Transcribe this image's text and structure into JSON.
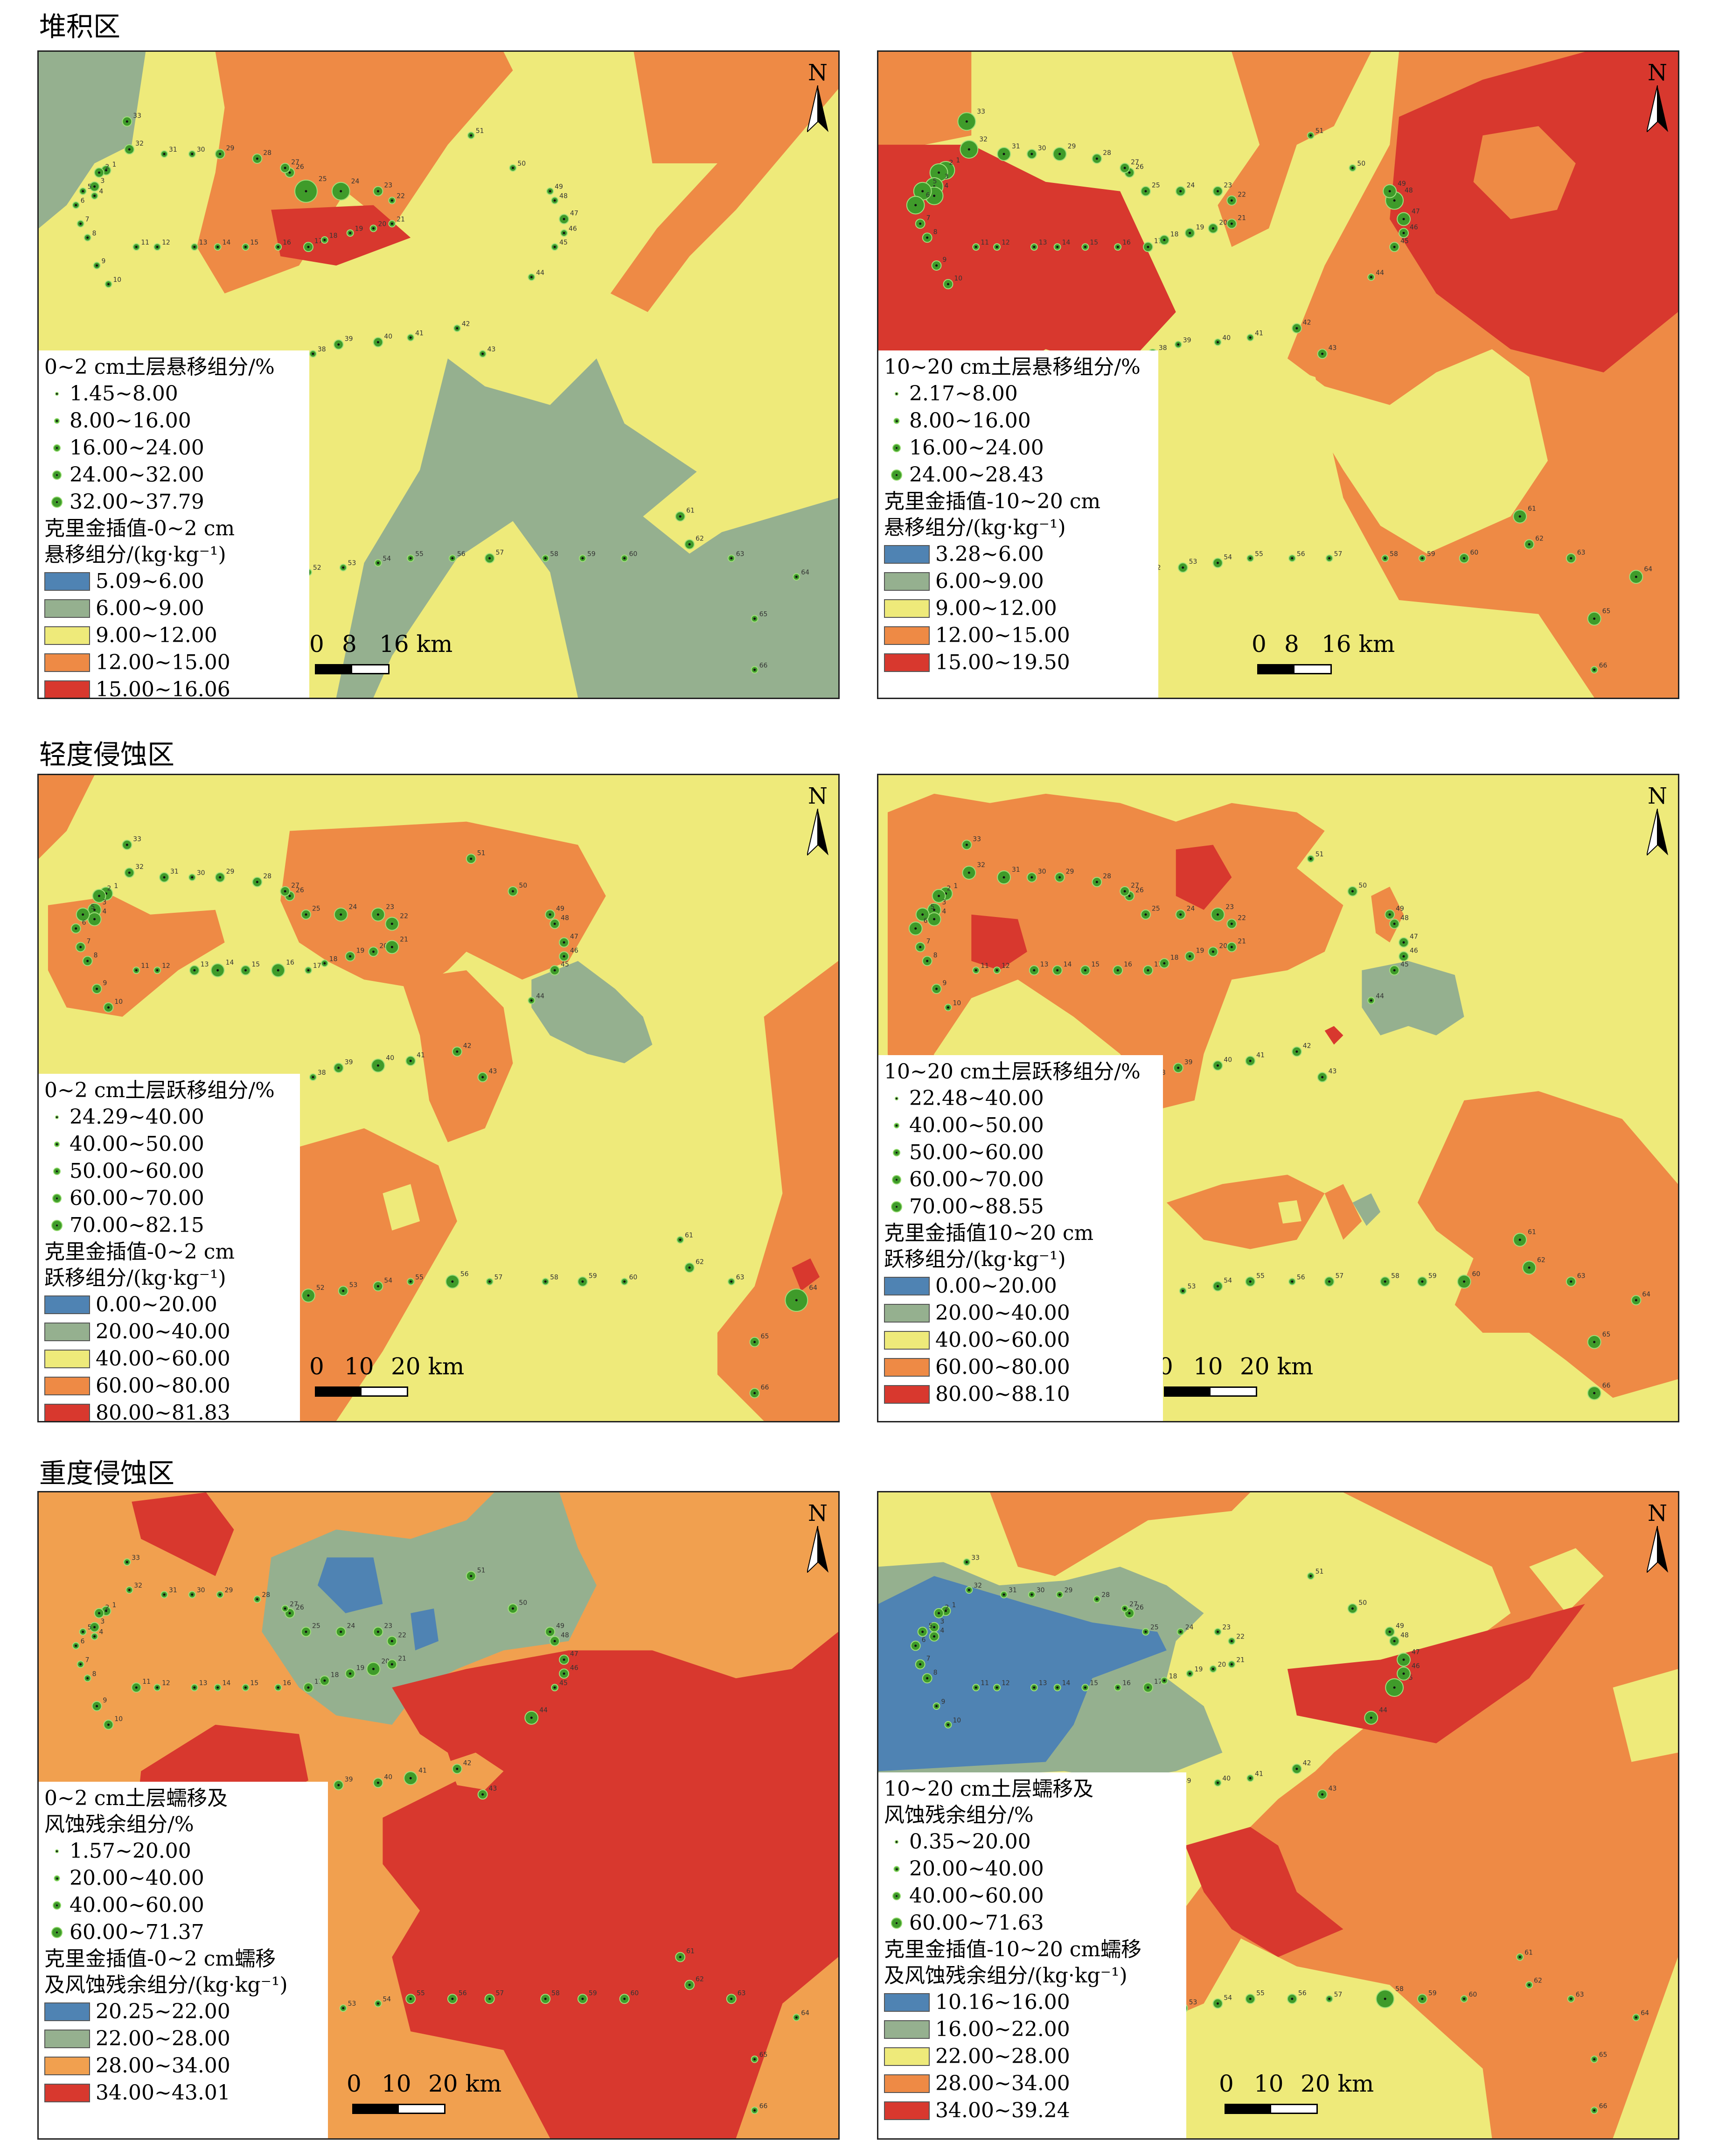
{
  "regions": [
    {
      "title": "堆积区"
    },
    {
      "title": "轻度侵蚀区"
    },
    {
      "title": "重度侵蚀区"
    }
  ],
  "north_label": "N",
  "colors": {
    "blue": "#4f83b3",
    "gray_green": "#95b08f",
    "yellow": "#eeea7a",
    "orange": "#ee8a45",
    "red": "#d8382e",
    "orange_light": "#f1a04f",
    "point_fill": "#3f9b2a"
  },
  "panels": [
    {
      "id": "p1",
      "legend": {
        "points_title": [
          "0~2 cm土层悬移组分/%"
        ],
        "points": [
          "1.45~8.00",
          "8.00~16.00",
          "16.00~24.00",
          "24.00~32.00",
          "32.00~37.79"
        ],
        "kriging_title": [
          "克里金插值-0~2 cm",
          "悬移组分/(kg·kg⁻¹)"
        ],
        "classes": [
          {
            "label": "5.09~6.00",
            "color": "#4f83b3"
          },
          {
            "label": "6.00~9.00",
            "color": "#95b08f"
          },
          {
            "label": "9.00~12.00",
            "color": "#eeea7a"
          },
          {
            "label": "12.00~15.00",
            "color": "#ee8a45"
          },
          {
            "label": "15.00~16.06",
            "color": "#d8382e"
          }
        ]
      },
      "scale": {
        "labels": [
          "0",
          "8",
          "16 km"
        ]
      }
    },
    {
      "id": "p2",
      "legend": {
        "points_title": [
          "10~20 cm土层悬移组分/%"
        ],
        "points": [
          "2.17~8.00",
          "8.00~16.00",
          "16.00~24.00",
          "24.00~28.43"
        ],
        "kriging_title": [
          "克里金插值-10~20 cm",
          "悬移组分/(kg·kg⁻¹)"
        ],
        "classes": [
          {
            "label": "3.28~6.00",
            "color": "#4f83b3"
          },
          {
            "label": "6.00~9.00",
            "color": "#95b08f"
          },
          {
            "label": "9.00~12.00",
            "color": "#eeea7a"
          },
          {
            "label": "12.00~15.00",
            "color": "#ee8a45"
          },
          {
            "label": "15.00~19.50",
            "color": "#d8382e"
          }
        ]
      },
      "scale": {
        "labels": [
          "0",
          "8",
          "16 km"
        ]
      }
    },
    {
      "id": "p3",
      "legend": {
        "points_title": [
          "0~2 cm土层跃移组分/%"
        ],
        "points": [
          "24.29~40.00",
          "40.00~50.00",
          "50.00~60.00",
          "60.00~70.00",
          "70.00~82.15"
        ],
        "kriging_title": [
          "克里金插值-0~2 cm",
          "跃移组分/(kg·kg⁻¹)"
        ],
        "classes": [
          {
            "label": "0.00~20.00",
            "color": "#4f83b3"
          },
          {
            "label": "20.00~40.00",
            "color": "#95b08f"
          },
          {
            "label": "40.00~60.00",
            "color": "#eeea7a"
          },
          {
            "label": "60.00~80.00",
            "color": "#ee8a45"
          },
          {
            "label": "80.00~81.83",
            "color": "#d8382e"
          }
        ]
      },
      "scale": {
        "labels": [
          "0",
          "10",
          "20 km"
        ]
      }
    },
    {
      "id": "p4",
      "legend": {
        "points_title": [
          "10~20 cm土层跃移组分/%"
        ],
        "points": [
          "22.48~40.00",
          "40.00~50.00",
          "50.00~60.00",
          "60.00~70.00",
          "70.00~88.55"
        ],
        "kriging_title": [
          "克里金插值10~20 cm",
          "跃移组分/(kg·kg⁻¹)"
        ],
        "classes": [
          {
            "label": "0.00~20.00",
            "color": "#4f83b3"
          },
          {
            "label": "20.00~40.00",
            "color": "#95b08f"
          },
          {
            "label": "40.00~60.00",
            "color": "#eeea7a"
          },
          {
            "label": "60.00~80.00",
            "color": "#ee8a45"
          },
          {
            "label": "80.00~88.10",
            "color": "#d8382e"
          }
        ]
      },
      "scale": {
        "labels": [
          "0",
          "10",
          "20 km"
        ]
      }
    },
    {
      "id": "p5",
      "legend": {
        "points_title": [
          "0~2 cm土层蠕移及",
          "风蚀残余组分/%"
        ],
        "points": [
          "1.57~20.00",
          "20.00~40.00",
          "40.00~60.00",
          "60.00~71.37"
        ],
        "kriging_title": [
          "克里金插值-0~2 cm蠕移",
          "及风蚀残余组分/(kg·kg⁻¹)"
        ],
        "classes": [
          {
            "label": "20.25~22.00",
            "color": "#4f83b3"
          },
          {
            "label": "22.00~28.00",
            "color": "#95b08f"
          },
          {
            "label": "28.00~34.00",
            "color": "#f1a04f"
          },
          {
            "label": "34.00~43.01",
            "color": "#d8382e"
          }
        ]
      },
      "scale": {
        "labels": [
          "0",
          "10",
          "20 km"
        ]
      }
    },
    {
      "id": "p6",
      "legend": {
        "points_title": [
          "10~20 cm土层蠕移及",
          "风蚀残余组分/%"
        ],
        "points": [
          "0.35~20.00",
          "20.00~40.00",
          "40.00~60.00",
          "60.00~71.63"
        ],
        "kriging_title": [
          "克里金插值-10~20 cm蠕移",
          "及风蚀残余组分/(kg·kg⁻¹)"
        ],
        "classes": [
          {
            "label": "10.16~16.00",
            "color": "#4f83b3"
          },
          {
            "label": "16.00~22.00",
            "color": "#95b08f"
          },
          {
            "label": "22.00~28.00",
            "color": "#eeea7a"
          },
          {
            "label": "28.00~34.00",
            "color": "#ee8a45"
          },
          {
            "label": "34.00~39.24",
            "color": "#d8382e"
          }
        ]
      },
      "scale": {
        "labels": [
          "0",
          "10",
          "20 km"
        ]
      }
    }
  ],
  "site_labels": [
    "1",
    "2",
    "3",
    "4",
    "5",
    "6",
    "7",
    "8",
    "9",
    "10",
    "11",
    "12",
    "13",
    "14",
    "15",
    "16",
    "17",
    "18",
    "19",
    "20",
    "21",
    "22",
    "23",
    "24",
    "25",
    "26",
    "27",
    "28",
    "29",
    "30",
    "31",
    "32",
    "33",
    "34",
    "35",
    "36",
    "37",
    "38",
    "39",
    "40",
    "41",
    "42",
    "43",
    "44",
    "45",
    "46",
    "47",
    "48",
    "49",
    "50",
    "51",
    "52",
    "53",
    "54",
    "55",
    "56",
    "57",
    "58",
    "59",
    "60",
    "61",
    "62",
    "63",
    "64",
    "65",
    "66"
  ],
  "site_sizes": {
    "p1": [
      2,
      2,
      2,
      1,
      1,
      1,
      1,
      1,
      1,
      1,
      1,
      1,
      1,
      1,
      1,
      1,
      2,
      1,
      1,
      1,
      1,
      1,
      2,
      4,
      5,
      2,
      2,
      2,
      2,
      1,
      1,
      2,
      2,
      2,
      2,
      2,
      2,
      1,
      2,
      2,
      1,
      1,
      1,
      1,
      1,
      1,
      2,
      1,
      1,
      1,
      1,
      1,
      1,
      1,
      1,
      1,
      2,
      1,
      1,
      1,
      2,
      2,
      1,
      1,
      1,
      1
    ],
    "p2": [
      4,
      4,
      4,
      4,
      4,
      4,
      2,
      2,
      2,
      2,
      1,
      1,
      1,
      1,
      1,
      1,
      2,
      2,
      2,
      2,
      2,
      2,
      2,
      2,
      2,
      2,
      2,
      2,
      3,
      2,
      3,
      4,
      4,
      3,
      3,
      3,
      3,
      2,
      1,
      1,
      1,
      2,
      2,
      1,
      2,
      2,
      3,
      4,
      3,
      1,
      1,
      1,
      2,
      2,
      1,
      1,
      1,
      1,
      1,
      2,
      3,
      2,
      2,
      3,
      3,
      1
    ],
    "p3": [
      3,
      3,
      3,
      3,
      3,
      2,
      2,
      2,
      2,
      2,
      1,
      1,
      2,
      3,
      2,
      3,
      1,
      1,
      2,
      2,
      3,
      3,
      3,
      3,
      2,
      2,
      2,
      2,
      2,
      1,
      2,
      2,
      2,
      1,
      1,
      1,
      1,
      1,
      2,
      3,
      2,
      2,
      2,
      1,
      2,
      2,
      2,
      2,
      2,
      2,
      2,
      3,
      2,
      2,
      1,
      3,
      1,
      1,
      2,
      1,
      1,
      2,
      1,
      5,
      2,
      2
    ],
    "p4": [
      3,
      3,
      3,
      3,
      3,
      3,
      2,
      2,
      2,
      1,
      1,
      1,
      2,
      2,
      2,
      2,
      2,
      2,
      2,
      2,
      2,
      2,
      3,
      2,
      2,
      2,
      2,
      2,
      2,
      2,
      3,
      3,
      2,
      2,
      2,
      2,
      2,
      1,
      2,
      2,
      2,
      2,
      2,
      1,
      2,
      2,
      2,
      2,
      2,
      2,
      1,
      1,
      1,
      2,
      2,
      1,
      2,
      2,
      2,
      3,
      3,
      3,
      2,
      2,
      3,
      3
    ],
    "p5": [
      2,
      2,
      2,
      1,
      1,
      1,
      1,
      1,
      2,
      2,
      2,
      1,
      1,
      1,
      1,
      1,
      2,
      2,
      2,
      3,
      2,
      2,
      2,
      2,
      2,
      2,
      1,
      1,
      1,
      1,
      1,
      1,
      1,
      2,
      2,
      2,
      2,
      1,
      2,
      2,
      3,
      2,
      2,
      3,
      1,
      2,
      2,
      2,
      2,
      2,
      2,
      1,
      1,
      1,
      2,
      2,
      2,
      2,
      2,
      2,
      2,
      2,
      2,
      1,
      1,
      1
    ],
    "p6": [
      2,
      2,
      2,
      2,
      2,
      2,
      2,
      2,
      1,
      1,
      1,
      1,
      1,
      1,
      1,
      1,
      2,
      1,
      1,
      1,
      1,
      1,
      1,
      1,
      1,
      2,
      1,
      1,
      1,
      1,
      1,
      1,
      1,
      1,
      1,
      1,
      1,
      2,
      1,
      1,
      1,
      2,
      2,
      3,
      4,
      3,
      3,
      2,
      2,
      2,
      1,
      1,
      2,
      2,
      2,
      2,
      1,
      4,
      2,
      1,
      1,
      1,
      1,
      1,
      1,
      1
    ]
  }
}
